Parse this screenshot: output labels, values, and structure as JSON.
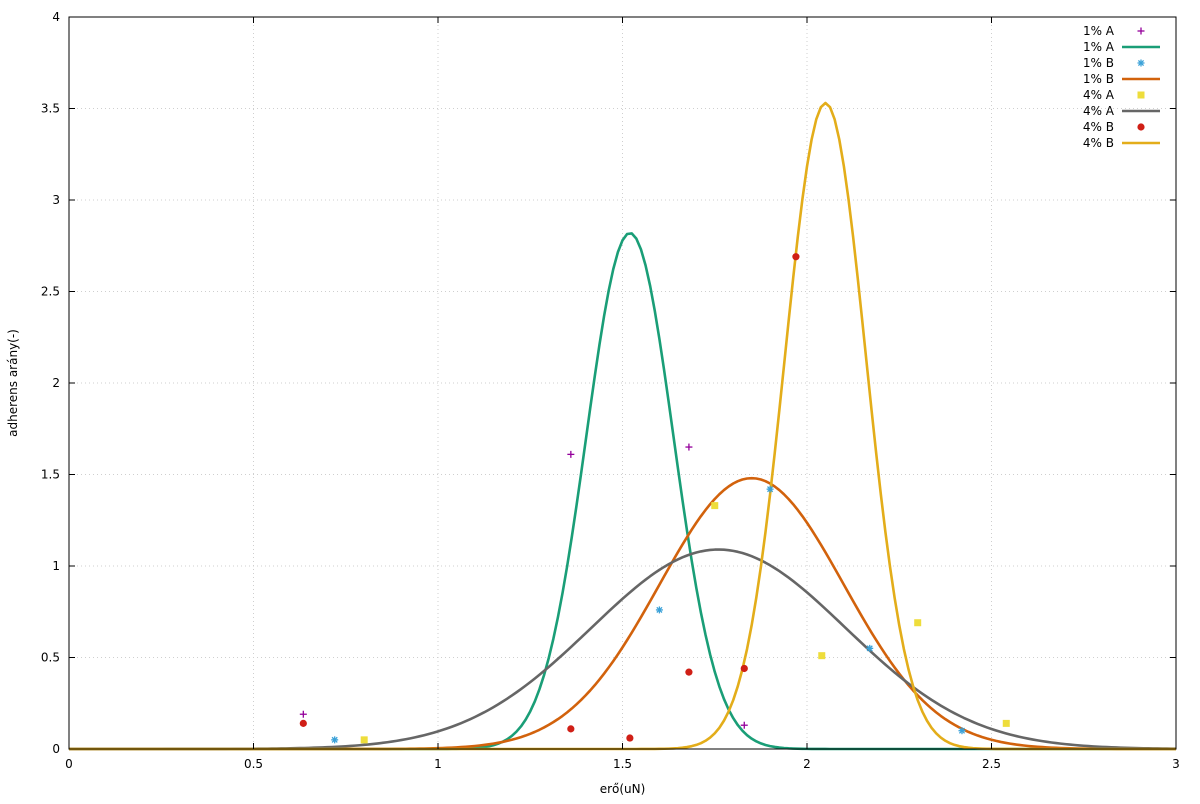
{
  "chart_data": {
    "type": "scatter",
    "xlabel": "erő(uN)",
    "ylabel": "adherens arány(-)",
    "xlim": [
      0,
      3
    ],
    "ylim": [
      0,
      4
    ],
    "xticks": [
      0,
      0.5,
      1,
      1.5,
      2,
      2.5,
      3
    ],
    "xtick_labels": [
      "0",
      "0.5",
      "1",
      "1.5",
      "2",
      "2.5",
      "3"
    ],
    "yticks": [
      0,
      0.5,
      1,
      1.5,
      2,
      2.5,
      3,
      3.5,
      4
    ],
    "ytick_labels": [
      "0",
      "0.5",
      "1",
      "1.5",
      "2",
      "2.5",
      "3",
      "3.5",
      "4"
    ],
    "grid": true,
    "legend_position": "top-right",
    "series": [
      {
        "name": "1% A",
        "kind": "points",
        "marker": "plus",
        "color": "#94009b",
        "x": [
          0.635,
          1.36,
          1.68,
          1.83
        ],
        "y": [
          0.19,
          1.61,
          1.65,
          0.13
        ]
      },
      {
        "name": "1% A",
        "kind": "line",
        "color": "#1a9e77",
        "curve": {
          "form": "gaussian",
          "amplitude": 2.82,
          "mean": 1.52,
          "sigma": 0.118
        }
      },
      {
        "name": "1% B",
        "kind": "points",
        "marker": "star",
        "color": "#3aa1d8",
        "x": [
          0.72,
          1.6,
          1.9,
          2.17,
          2.42
        ],
        "y": [
          0.05,
          0.76,
          1.42,
          0.55,
          0.1
        ]
      },
      {
        "name": "1% B",
        "kind": "line",
        "color": "#d2620c",
        "curve": {
          "form": "gaussian",
          "amplitude": 1.48,
          "mean": 1.85,
          "sigma": 0.25
        }
      },
      {
        "name": "4% A",
        "kind": "points",
        "marker": "square",
        "color": "#eedd3b",
        "x": [
          0.8,
          1.75,
          2.04,
          2.3,
          2.54
        ],
        "y": [
          0.05,
          1.33,
          0.51,
          0.69,
          0.14
        ]
      },
      {
        "name": "4% A",
        "kind": "line",
        "color": "#666666",
        "curve": {
          "form": "gaussian",
          "amplitude": 1.09,
          "mean": 1.76,
          "sigma": 0.345
        }
      },
      {
        "name": "4% B",
        "kind": "points",
        "marker": "circle",
        "color": "#d01f16",
        "x": [
          0.635,
          1.36,
          1.52,
          1.68,
          1.83,
          1.97
        ],
        "y": [
          0.14,
          0.11,
          0.06,
          0.42,
          0.44,
          2.69
        ]
      },
      {
        "name": "4% B",
        "kind": "line",
        "color": "#e3ad1a",
        "curve": {
          "form": "gaussian",
          "amplitude": 3.53,
          "mean": 2.05,
          "sigma": 0.11
        }
      }
    ]
  }
}
